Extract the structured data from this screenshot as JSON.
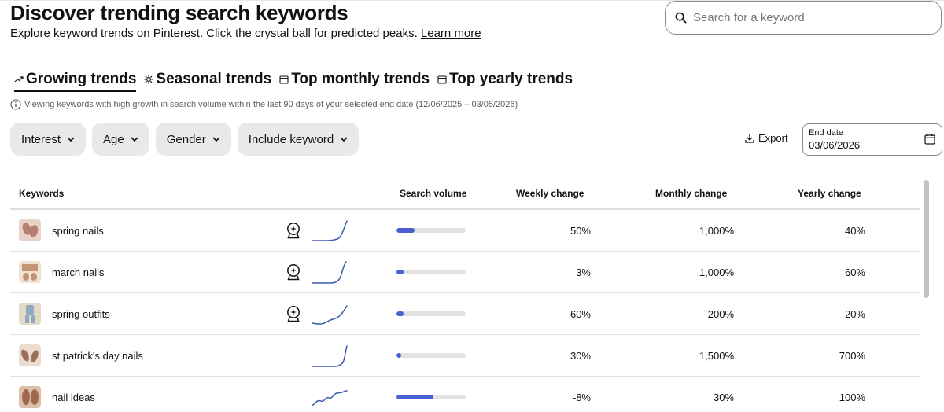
{
  "header": {
    "title": "Discover trending search keywords",
    "subtitle": "Explore keyword trends on Pinterest. Click the crystal ball for predicted peaks.",
    "learn_more": "Learn more"
  },
  "search": {
    "placeholder": "Search for a keyword",
    "icon": "search-icon"
  },
  "tabs": [
    {
      "label": "Growing trends",
      "icon": "trending-up-icon",
      "active": true
    },
    {
      "label": "Seasonal trends",
      "icon": "sun-icon",
      "active": false
    },
    {
      "label": "Top monthly trends",
      "icon": "calendar-icon",
      "active": false
    },
    {
      "label": "Top yearly trends",
      "icon": "calendar-icon",
      "active": false
    }
  ],
  "info_text": "Viewing keywords with high growth in search volume within the last 90 days of your selected end date (12/06/2025 – 03/05/2026)",
  "filters": [
    "Interest",
    "Age",
    "Gender",
    "Include keyword"
  ],
  "export_label": "Export",
  "end_date": {
    "label": "End date",
    "value": "03/06/2026"
  },
  "table": {
    "columns": [
      "Keywords",
      "Search volume",
      "Weekly change",
      "Monthly change",
      "Yearly change"
    ],
    "rows": [
      {
        "keyword": "spring nails",
        "predicted_peak": true,
        "search_volume_fraction": 0.26,
        "weekly": "50%",
        "monthly": "1,000%",
        "yearly": "40%",
        "thumb_colors": [
          "#b57f6f",
          "#e9d3c8"
        ]
      },
      {
        "keyword": "march nails",
        "predicted_peak": true,
        "search_volume_fraction": 0.1,
        "weekly": "3%",
        "monthly": "1,000%",
        "yearly": "60%",
        "thumb_colors": [
          "#c29472",
          "#f0e2d2"
        ]
      },
      {
        "keyword": "spring outfits",
        "predicted_peak": true,
        "search_volume_fraction": 0.1,
        "weekly": "60%",
        "monthly": "200%",
        "yearly": "20%",
        "thumb_colors": [
          "#8fa9bf",
          "#e3d9c5"
        ]
      },
      {
        "keyword": "st patrick's day nails",
        "predicted_peak": false,
        "search_volume_fraction": 0.07,
        "weekly": "30%",
        "monthly": "1,500%",
        "yearly": "700%",
        "thumb_colors": [
          "#9c6f58",
          "#ecdcd0"
        ]
      },
      {
        "keyword": "nail ideas",
        "predicted_peak": false,
        "search_volume_fraction": 0.53,
        "weekly": "-8%",
        "monthly": "30%",
        "yearly": "100%",
        "thumb_colors": [
          "#a06a4e",
          "#dcbfa8"
        ]
      }
    ]
  },
  "colors": {
    "accent": "#4a5fd1",
    "bar_track": "#e3e3e3",
    "filter_bg": "#e9e9e9",
    "text": "#111111"
  }
}
